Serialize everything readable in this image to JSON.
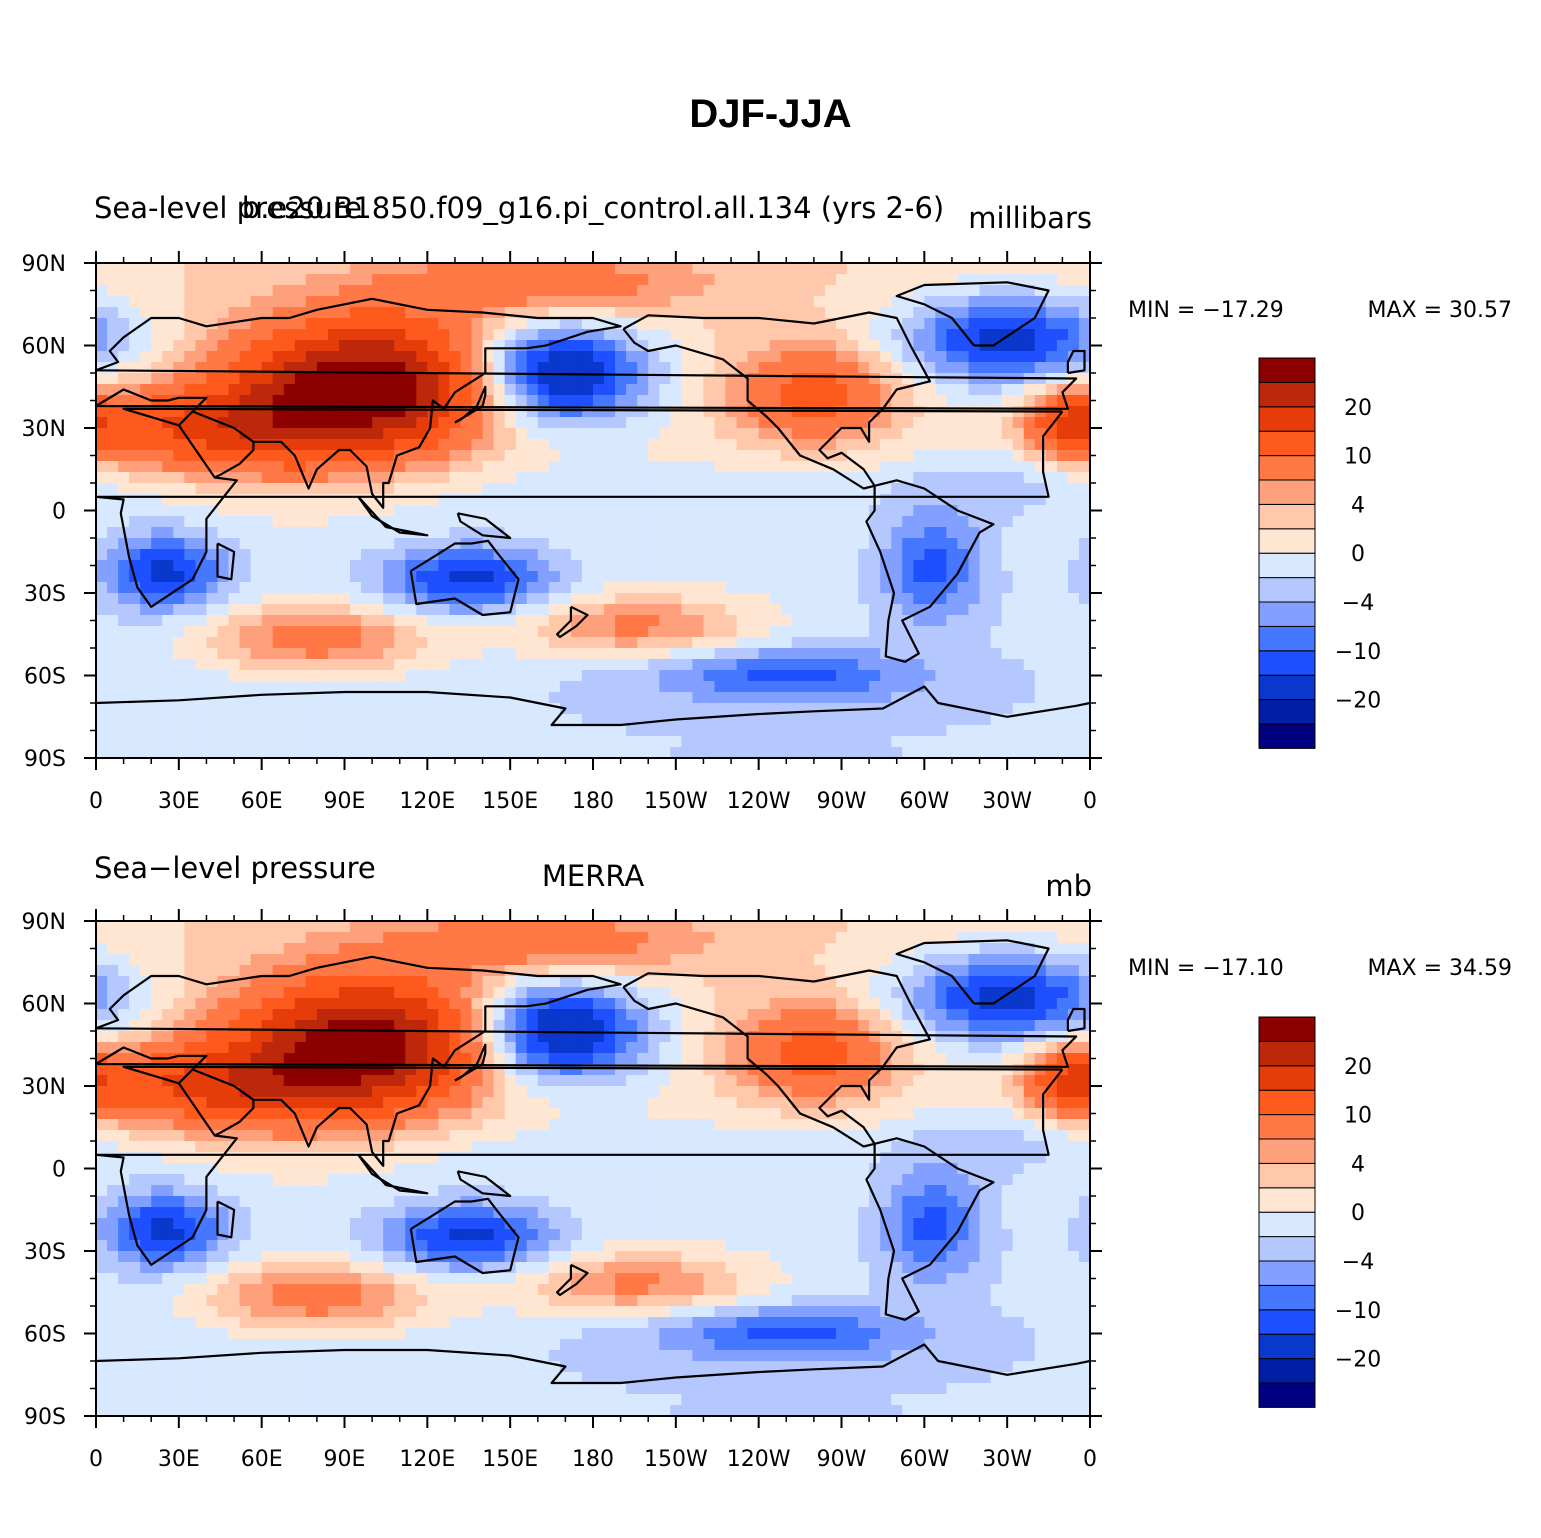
{
  "title": "DJF-JJA",
  "colorbar": {
    "colors": [
      "#000080",
      "#001ea6",
      "#0a37cc",
      "#1e50ff",
      "#4678ff",
      "#82a0ff",
      "#b4c8ff",
      "#d7e8ff",
      "#ffe6d2",
      "#ffc8aa",
      "#ffa07d",
      "#ff7846",
      "#ff5a1e",
      "#e63c0a",
      "#be280a",
      "#8c0000"
    ],
    "tick_labels": [
      "20",
      "10",
      "4",
      "0",
      "-4",
      "-10",
      "-20"
    ],
    "tick_label_display": [
      "20",
      "10",
      "4",
      "0",
      "−4",
      "−10",
      "−20"
    ]
  },
  "x_ticks": [
    "0",
    "30E",
    "60E",
    "90E",
    "120E",
    "150E",
    "180",
    "150W",
    "120W",
    "90W",
    "60W",
    "30W",
    "0"
  ],
  "y_ticks": [
    "90N",
    "60N",
    "30N",
    "0",
    "30S",
    "60S",
    "90S"
  ],
  "chart_data": [
    {
      "type": "heatmap",
      "variable": "Sea-level pressure",
      "left_title": "Sea-level pressure",
      "center_title": "b.e20.B1850.f09_g16.pi_control.all.134 (yrs 2-6)",
      "right_title": "millibars",
      "min_label": "MIN = −17.29",
      "max_label": "MAX =   30.57",
      "min": -17.29,
      "max": 30.57,
      "xlim": [
        0,
        360
      ],
      "ylim": [
        -90,
        90
      ],
      "levels": [
        -25,
        -20,
        -15,
        -10,
        -8,
        -6,
        -4,
        -2,
        0,
        2,
        4,
        6,
        10,
        15,
        20,
        25
      ]
    },
    {
      "type": "heatmap",
      "variable": "Sea-level pressure",
      "left_title": "Sea−level pressure",
      "center_title": "MERRA",
      "right_title": "mb",
      "min_label": "MIN = −17.10",
      "max_label": "MAX =   34.59",
      "min": -17.1,
      "max": 34.59,
      "xlim": [
        0,
        360
      ],
      "ylim": [
        -90,
        90
      ],
      "levels": [
        -25,
        -20,
        -15,
        -10,
        -8,
        -6,
        -4,
        -2,
        0,
        2,
        4,
        6,
        10,
        15,
        20,
        25
      ]
    }
  ]
}
